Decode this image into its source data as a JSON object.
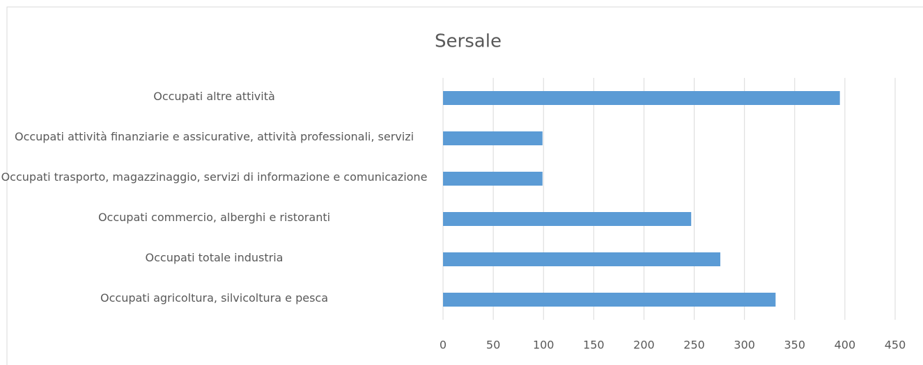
{
  "chart_data": {
    "type": "barh",
    "title": "Sersale",
    "categories": [
      "Occupati altre attività",
      "Occupati attività finanziarie e assicurative, attività professionali, servizi",
      "Occupati trasporto, magazzinaggio, servizi di informazione e comunicazione",
      "Occupati commercio, alberghi e ristoranti",
      "Occupati totale industria",
      "Occupati agricoltura, silvicoltura e pesca"
    ],
    "values": [
      395,
      99,
      99,
      247,
      276,
      331
    ],
    "color": "#5b9bd5",
    "xlim": [
      0,
      450
    ],
    "xticks": [
      0,
      50,
      100,
      150,
      200,
      250,
      300,
      350,
      400,
      450
    ],
    "grid": true
  }
}
